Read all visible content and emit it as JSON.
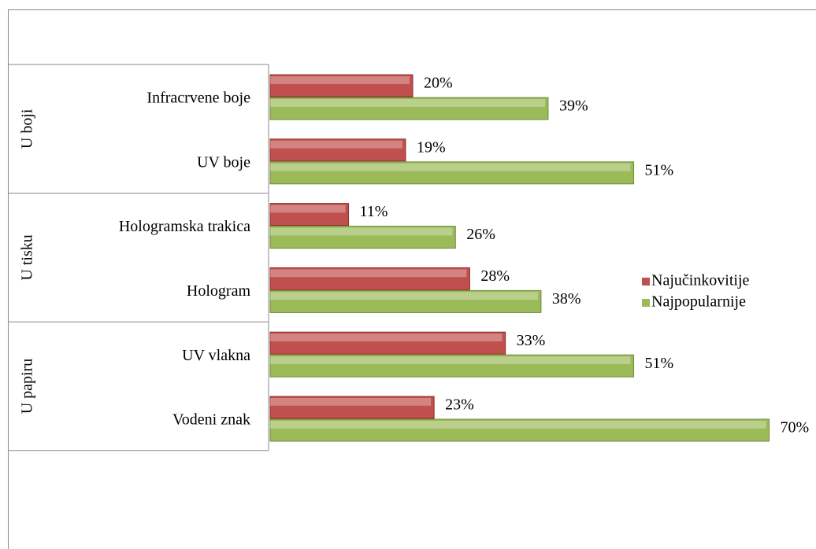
{
  "chart_data": {
    "type": "bar",
    "orientation": "horizontal",
    "groups": [
      {
        "name": "U boji",
        "categories": [
          "Infracrvene boje",
          "UV boje"
        ]
      },
      {
        "name": "U tisku",
        "categories": [
          "Hologramska trakica",
          "Hologram"
        ]
      },
      {
        "name": "U papiru",
        "categories": [
          "UV vlakna",
          "Vodeni znak"
        ]
      }
    ],
    "series": [
      {
        "name": "Najučinkovitije",
        "color": "#c0504d",
        "values": [
          20,
          19,
          11,
          28,
          33,
          23
        ],
        "value_labels": [
          "20%",
          "19%",
          "11%",
          "28%",
          "33%",
          "23%"
        ]
      },
      {
        "name": "Najpopularnije",
        "color": "#9bbb59",
        "values": [
          39,
          51,
          26,
          38,
          51,
          70
        ],
        "value_labels": [
          "39%",
          "51%",
          "26%",
          "38%",
          "51%",
          "70%"
        ]
      }
    ],
    "legend": "right"
  }
}
